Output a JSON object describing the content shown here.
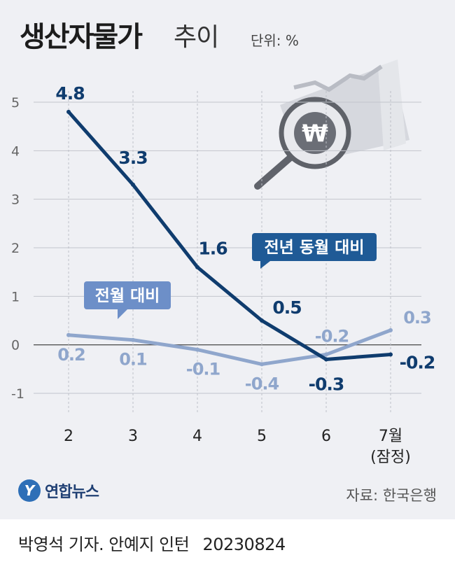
{
  "header": {
    "title": "생산자물가",
    "subtitle": "추이",
    "unit": "단위: %"
  },
  "callouts": {
    "yoy": "전년 동월 대비",
    "mom": "전월 대비"
  },
  "colors": {
    "yoy_line": "#0f3c6e",
    "mom_line": "#8fa6cc",
    "callout_yoy": "#1f5a96",
    "callout_mom": "#6d8fc8"
  },
  "chart_data": {
    "type": "line",
    "categories": [
      "2",
      "3",
      "4",
      "5",
      "6",
      "7월\n(잠정)"
    ],
    "x_tick_labels": [
      "2",
      "3",
      "4",
      "5",
      "6",
      "7월",
      "(잠정)"
    ],
    "y_ticks": [
      "5",
      "4",
      "3",
      "2",
      "1",
      "0",
      "-1"
    ],
    "ylim": [
      -1,
      5
    ],
    "grid": true,
    "series": [
      {
        "name": "전년 동월 대비",
        "values": [
          4.8,
          3.3,
          1.6,
          0.5,
          -0.3,
          -0.2
        ],
        "labels": [
          "4.8",
          "3.3",
          "1.6",
          "0.5",
          "-0.3",
          "-0.2"
        ]
      },
      {
        "name": "전월 대비",
        "values": [
          0.2,
          0.1,
          -0.1,
          -0.4,
          -0.2,
          0.3
        ],
        "labels": [
          "0.2",
          "0.1",
          "-0.1",
          "-0.4",
          "-0.2",
          "0.3"
        ]
      }
    ]
  },
  "logo": {
    "mark": "Y",
    "text": "연합뉴스"
  },
  "source": "자료: 한국은행",
  "footer": {
    "credit": "박영석 기자. 안예지 인턴",
    "date": "20230824"
  }
}
